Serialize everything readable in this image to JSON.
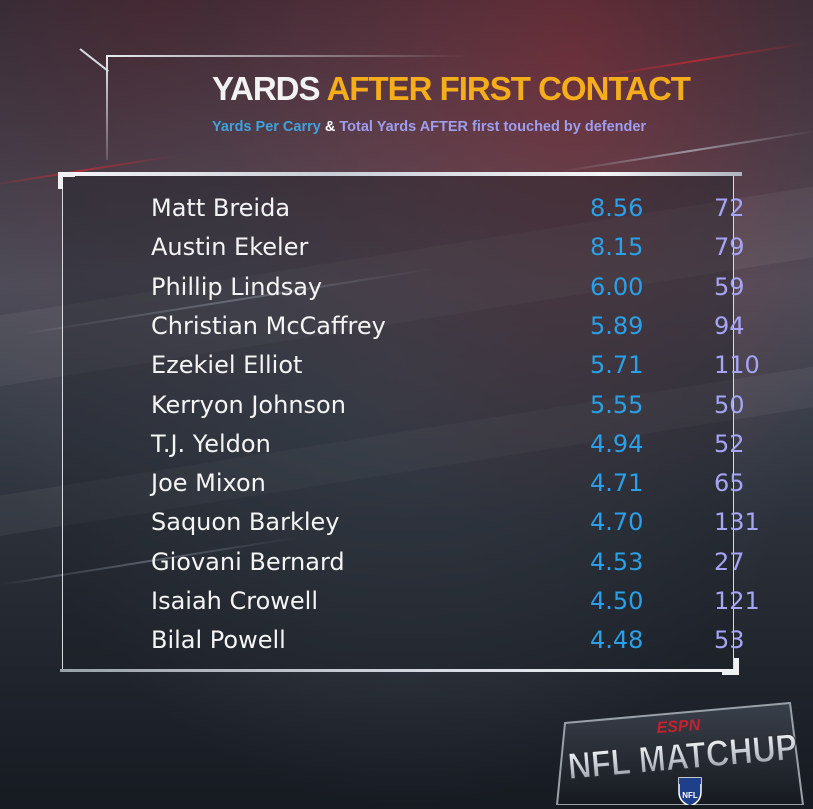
{
  "title": {
    "part1": "YARDS",
    "part2": "AFTER FIRST CONTACT"
  },
  "subtitle": {
    "part1": "Yards Per Carry",
    "amp": "&",
    "part2": "Total Yards AFTER first touched by defender"
  },
  "colors": {
    "title_white": "#f2f2f2",
    "title_yellow": "#f5ad1c",
    "ypc_blue": "#2aa0e8",
    "total_purple": "#a6a4f4",
    "name_white": "#f4f4f4"
  },
  "chart_data": {
    "type": "table",
    "columns": [
      "",
      "Yards Per Carry",
      "Total Yards AFTER first touched by defender"
    ],
    "rows": [
      {
        "name": "Matt Breida",
        "ypc": "8.56",
        "total": "72"
      },
      {
        "name": "Austin Ekeler",
        "ypc": "8.15",
        "total": "79"
      },
      {
        "name": "Phillip Lindsay",
        "ypc": "6.00",
        "total": "59"
      },
      {
        "name": "Christian McCaffrey",
        "ypc": "5.89",
        "total": "94"
      },
      {
        "name": "Ezekiel Elliot",
        "ypc": "5.71",
        "total": "110"
      },
      {
        "name": "Kerryon Johnson",
        "ypc": "5.55",
        "total": "50"
      },
      {
        "name": "T.J. Yeldon",
        "ypc": "4.94",
        "total": "52"
      },
      {
        "name": "Joe Mixon",
        "ypc": "4.71",
        "total": "65"
      },
      {
        "name": "Saquon Barkley",
        "ypc": "4.70",
        "total": "131"
      },
      {
        "name": "Giovani Bernard",
        "ypc": "4.53",
        "total": "27"
      },
      {
        "name": "Isaiah Crowell",
        "ypc": "4.50",
        "total": "121"
      },
      {
        "name": "Bilal Powell",
        "ypc": "4.48",
        "total": "53"
      }
    ]
  },
  "logo": {
    "network": "ESPN",
    "show": "NFL MATCHUP",
    "league": "NFL"
  }
}
